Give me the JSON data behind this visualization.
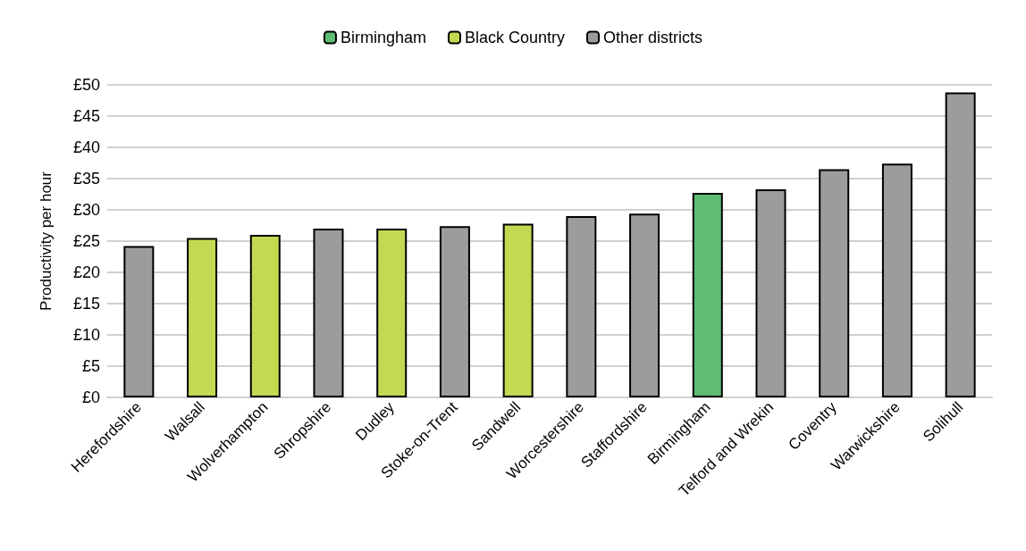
{
  "chart_data": {
    "type": "bar",
    "ylabel": "Productivity per hour",
    "stacked": true,
    "legend": "top",
    "grid": "y",
    "categories": [
      "Herefordshire",
      "Walsall",
      "Wolverhampton",
      "Shropshire",
      "Dudley",
      "Stoke-on-Trent",
      "Sandwell",
      "Worcestershire",
      "Staffordshire",
      "Birmingham",
      "Telford and Wrekin",
      "Coventry",
      "Warwickshire",
      "Solihull"
    ],
    "series": [
      {
        "name": "Birmingham",
        "color": "#5fbd72",
        "values": [
          null,
          null,
          null,
          null,
          null,
          null,
          null,
          null,
          null,
          32.7,
          null,
          null,
          null,
          null
        ]
      },
      {
        "name": "Black Country",
        "color": "#c3d952",
        "values": [
          null,
          25.5,
          26.0,
          null,
          27.0,
          null,
          27.8,
          null,
          null,
          null,
          null,
          null,
          null,
          null
        ]
      },
      {
        "name": "Other districts",
        "color": "#9b9d9d",
        "values": [
          24.2,
          null,
          null,
          27.0,
          null,
          27.4,
          null,
          29.0,
          29.4,
          null,
          33.3,
          36.5,
          37.4,
          48.8
        ]
      }
    ],
    "ylim": [
      0,
      50
    ],
    "yticks": [
      {
        "value": 0,
        "label": "£0"
      },
      {
        "value": 5,
        "label": "£5"
      },
      {
        "value": 10,
        "label": "£10"
      },
      {
        "value": 15,
        "label": "£15"
      },
      {
        "value": 20,
        "label": "£20"
      },
      {
        "value": 25,
        "label": "£25"
      },
      {
        "value": 30,
        "label": "£30"
      },
      {
        "value": 35,
        "label": "£35"
      },
      {
        "value": 40,
        "label": "£40"
      },
      {
        "value": 45,
        "label": "£45"
      },
      {
        "value": 50,
        "label": "£50"
      }
    ]
  }
}
